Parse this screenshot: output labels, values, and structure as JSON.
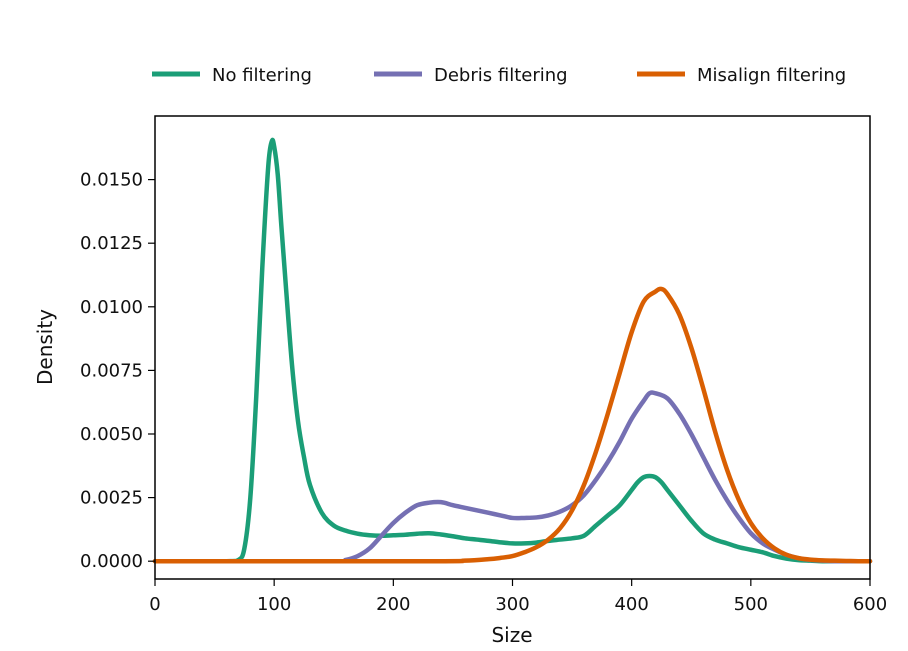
{
  "chart_data": {
    "type": "line",
    "title": "",
    "xlabel": "Size",
    "ylabel": "Density",
    "xlim": [
      0,
      600
    ],
    "ylim": [
      -0.0007,
      0.0175
    ],
    "x_ticks": [
      0,
      100,
      200,
      300,
      400,
      500,
      600
    ],
    "x_tick_labels": [
      "0",
      "100",
      "200",
      "300",
      "400",
      "500",
      "600"
    ],
    "y_ticks": [
      0.0,
      0.0025,
      0.005,
      0.0075,
      0.01,
      0.0125,
      0.015
    ],
    "y_tick_labels": [
      "0.0000",
      "0.0025",
      "0.0050",
      "0.0075",
      "0.0100",
      "0.0125",
      "0.0150"
    ],
    "grid": false,
    "legend_position": "top",
    "series": [
      {
        "name": "No filtering",
        "color": "#1b9e77",
        "x": [
          0,
          60,
          70,
          75,
          80,
          85,
          90,
          95,
          98,
          100,
          103,
          106,
          110,
          115,
          120,
          125,
          130,
          140,
          150,
          160,
          170,
          180,
          190,
          200,
          210,
          220,
          230,
          240,
          250,
          260,
          270,
          280,
          290,
          300,
          310,
          320,
          330,
          340,
          350,
          360,
          370,
          380,
          390,
          400,
          405,
          410,
          415,
          420,
          425,
          430,
          440,
          450,
          460,
          470,
          480,
          490,
          500,
          510,
          520,
          530,
          540,
          550,
          560,
          570,
          580,
          590,
          600
        ],
        "y": [
          0.0,
          0.0,
          5e-05,
          0.0005,
          0.0025,
          0.0065,
          0.0115,
          0.0155,
          0.0165,
          0.0163,
          0.0152,
          0.0132,
          0.0107,
          0.0077,
          0.0055,
          0.0041,
          0.003,
          0.0019,
          0.0014,
          0.0012,
          0.00108,
          0.00102,
          0.001,
          0.00102,
          0.00104,
          0.00108,
          0.0011,
          0.00105,
          0.00098,
          0.0009,
          0.00085,
          0.0008,
          0.00074,
          0.0007,
          0.0007,
          0.00073,
          0.0008,
          0.00085,
          0.0009,
          0.001,
          0.0014,
          0.0018,
          0.0022,
          0.0028,
          0.0031,
          0.0033,
          0.00335,
          0.0033,
          0.0031,
          0.0028,
          0.0022,
          0.0016,
          0.0011,
          0.00085,
          0.0007,
          0.00055,
          0.00045,
          0.00035,
          0.0002,
          0.0001,
          4e-05,
          2e-05,
          0.0,
          0.0,
          0.0,
          0.0,
          0.0
        ]
      },
      {
        "name": "Debris filtering",
        "color": "#7570b3",
        "x": [
          0,
          150,
          160,
          170,
          180,
          190,
          200,
          210,
          220,
          230,
          240,
          250,
          260,
          270,
          280,
          290,
          300,
          310,
          320,
          330,
          340,
          350,
          360,
          370,
          380,
          390,
          400,
          410,
          415,
          420,
          430,
          440,
          450,
          460,
          470,
          480,
          490,
          500,
          510,
          520,
          530,
          540,
          550,
          560,
          570,
          580,
          590,
          600
        ],
        "y": [
          0.0,
          0.0,
          5e-05,
          0.0002,
          0.0005,
          0.001,
          0.0015,
          0.0019,
          0.0022,
          0.0023,
          0.00232,
          0.0022,
          0.0021,
          0.002,
          0.0019,
          0.0018,
          0.0017,
          0.0017,
          0.00172,
          0.0018,
          0.00195,
          0.0022,
          0.0026,
          0.0032,
          0.0039,
          0.0047,
          0.0056,
          0.0063,
          0.0066,
          0.0066,
          0.0064,
          0.0058,
          0.005,
          0.0041,
          0.0032,
          0.0024,
          0.0017,
          0.0011,
          0.0007,
          0.00045,
          0.00025,
          0.00012,
          5e-05,
          2e-05,
          0.0,
          0.0,
          0.0,
          0.0
        ]
      },
      {
        "name": "Misalign filtering",
        "color": "#d95f02",
        "x": [
          0,
          230,
          260,
          280,
          290,
          300,
          310,
          320,
          330,
          340,
          350,
          360,
          370,
          380,
          390,
          400,
          410,
          420,
          425,
          430,
          440,
          450,
          460,
          470,
          480,
          490,
          500,
          510,
          520,
          530,
          540,
          550,
          560,
          570,
          580,
          590,
          600
        ],
        "y": [
          0.0,
          0.0,
          2e-05,
          8e-05,
          0.00013,
          0.0002,
          0.00035,
          0.00055,
          0.00085,
          0.0013,
          0.002,
          0.003,
          0.0043,
          0.0058,
          0.0074,
          0.009,
          0.0102,
          0.0106,
          0.0107,
          0.0105,
          0.0097,
          0.0084,
          0.0068,
          0.0051,
          0.0036,
          0.0024,
          0.0015,
          0.0009,
          0.0005,
          0.00025,
          0.00012,
          6e-05,
          3e-05,
          2e-05,
          1e-05,
          0.0,
          0.0
        ]
      }
    ]
  }
}
